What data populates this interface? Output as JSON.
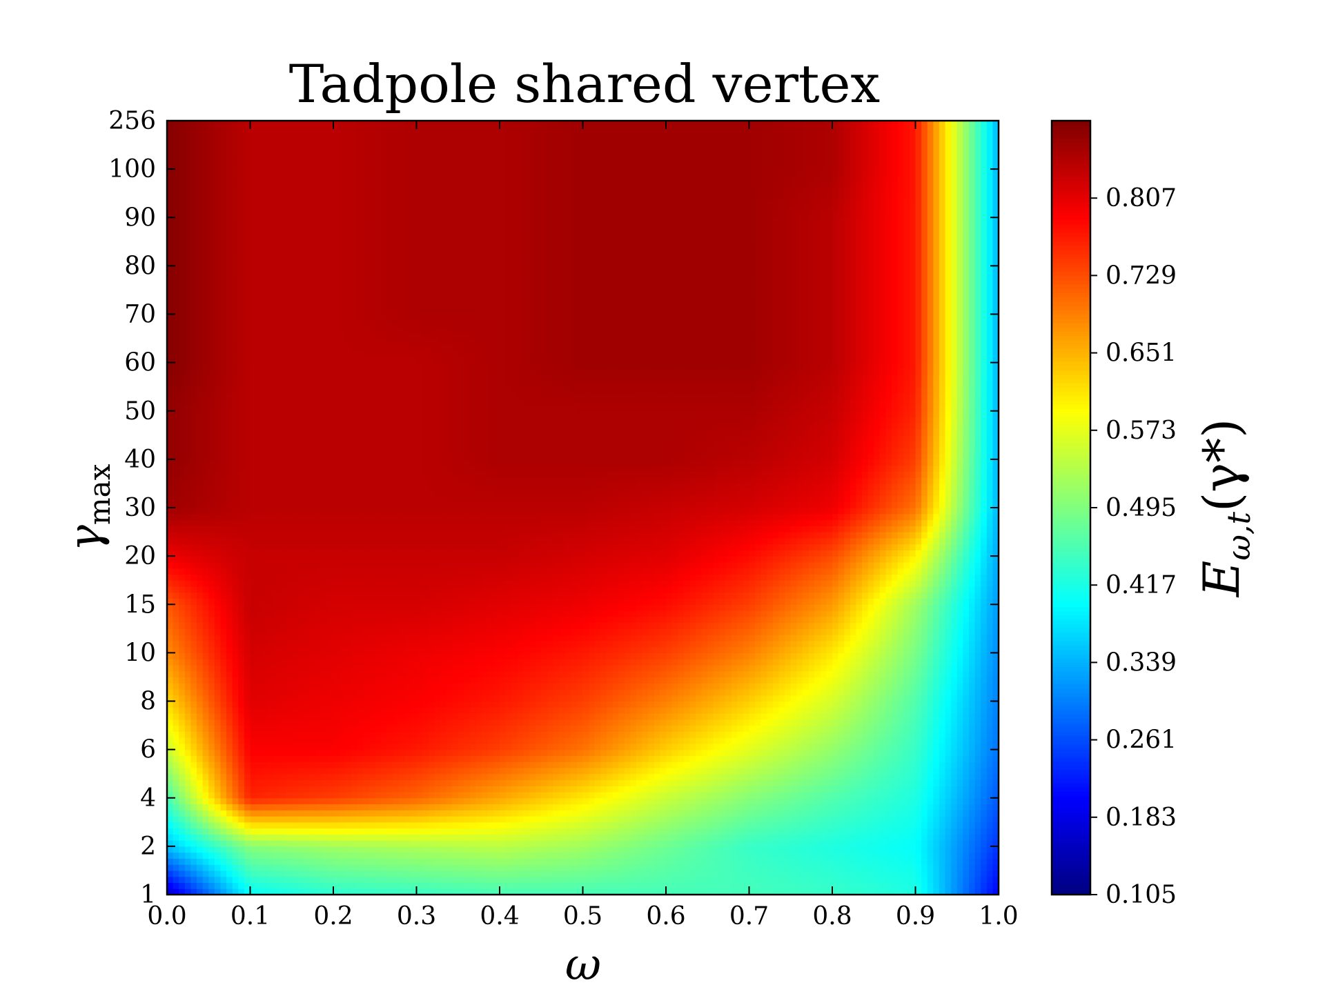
{
  "chart_data": {
    "type": "heatmap",
    "title": "Tadpole shared vertex",
    "xlabel": "ω",
    "ylabel": "γ",
    "ylabel_sub": "max",
    "colorbar_label": "E",
    "colorbar_label_sub": "ω,t",
    "colorbar_label_arg": "(γ*)",
    "colormap": "jet",
    "x": [
      0.0,
      0.1,
      0.2,
      0.3,
      0.4,
      0.5,
      0.6,
      0.7,
      0.8,
      0.9,
      1.0
    ],
    "x_tick_labels": [
      "0.0",
      "0.1",
      "0.2",
      "0.3",
      "0.4",
      "0.5",
      "0.6",
      "0.7",
      "0.8",
      "0.9",
      "1.0"
    ],
    "y_tick_labels": [
      "1",
      "2",
      "4",
      "6",
      "8",
      "10",
      "15",
      "20",
      "30",
      "40",
      "50",
      "60",
      "70",
      "80",
      "90",
      "100",
      "256"
    ],
    "xlim": [
      0.0,
      1.0
    ],
    "clim": [
      0.105,
      0.885
    ],
    "colorbar_ticks": [
      0.105,
      0.183,
      0.261,
      0.339,
      0.417,
      0.495,
      0.573,
      0.651,
      0.729,
      0.807
    ],
    "colorbar_tick_labels": [
      "0.105",
      "0.183",
      "0.261",
      "0.339",
      "0.417",
      "0.495",
      "0.573",
      "0.651",
      "0.729",
      "0.807"
    ],
    "values": [
      [
        0.16,
        0.4,
        0.43,
        0.44,
        0.45,
        0.45,
        0.45,
        0.45,
        0.44,
        0.42,
        0.2
      ],
      [
        0.35,
        0.5,
        0.52,
        0.53,
        0.54,
        0.52,
        0.48,
        0.44,
        0.42,
        0.4,
        0.24
      ],
      [
        0.45,
        0.76,
        0.74,
        0.71,
        0.66,
        0.61,
        0.55,
        0.5,
        0.46,
        0.42,
        0.27
      ],
      [
        0.55,
        0.79,
        0.79,
        0.77,
        0.74,
        0.7,
        0.63,
        0.57,
        0.51,
        0.44,
        0.29
      ],
      [
        0.62,
        0.81,
        0.8,
        0.79,
        0.77,
        0.74,
        0.69,
        0.63,
        0.56,
        0.46,
        0.3
      ],
      [
        0.68,
        0.82,
        0.81,
        0.8,
        0.79,
        0.77,
        0.74,
        0.69,
        0.61,
        0.49,
        0.31
      ],
      [
        0.72,
        0.83,
        0.82,
        0.82,
        0.81,
        0.8,
        0.78,
        0.74,
        0.67,
        0.52,
        0.32
      ],
      [
        0.8,
        0.83,
        0.83,
        0.83,
        0.83,
        0.82,
        0.81,
        0.78,
        0.73,
        0.6,
        0.33
      ],
      [
        0.86,
        0.84,
        0.84,
        0.84,
        0.84,
        0.84,
        0.83,
        0.82,
        0.8,
        0.7,
        0.34
      ],
      [
        0.87,
        0.84,
        0.84,
        0.84,
        0.85,
        0.85,
        0.85,
        0.84,
        0.82,
        0.74,
        0.34
      ],
      [
        0.87,
        0.84,
        0.84,
        0.84,
        0.85,
        0.85,
        0.85,
        0.85,
        0.83,
        0.76,
        0.34
      ],
      [
        0.88,
        0.84,
        0.84,
        0.84,
        0.85,
        0.86,
        0.86,
        0.86,
        0.84,
        0.77,
        0.34
      ],
      [
        0.88,
        0.84,
        0.84,
        0.85,
        0.85,
        0.86,
        0.86,
        0.86,
        0.84,
        0.77,
        0.34
      ],
      [
        0.88,
        0.84,
        0.84,
        0.85,
        0.85,
        0.86,
        0.86,
        0.86,
        0.84,
        0.77,
        0.34
      ],
      [
        0.88,
        0.84,
        0.84,
        0.85,
        0.85,
        0.86,
        0.86,
        0.86,
        0.84,
        0.77,
        0.34
      ],
      [
        0.88,
        0.84,
        0.84,
        0.85,
        0.85,
        0.86,
        0.86,
        0.86,
        0.85,
        0.77,
        0.34
      ],
      [
        0.88,
        0.84,
        0.84,
        0.85,
        0.85,
        0.86,
        0.86,
        0.86,
        0.85,
        0.77,
        0.34
      ]
    ]
  }
}
